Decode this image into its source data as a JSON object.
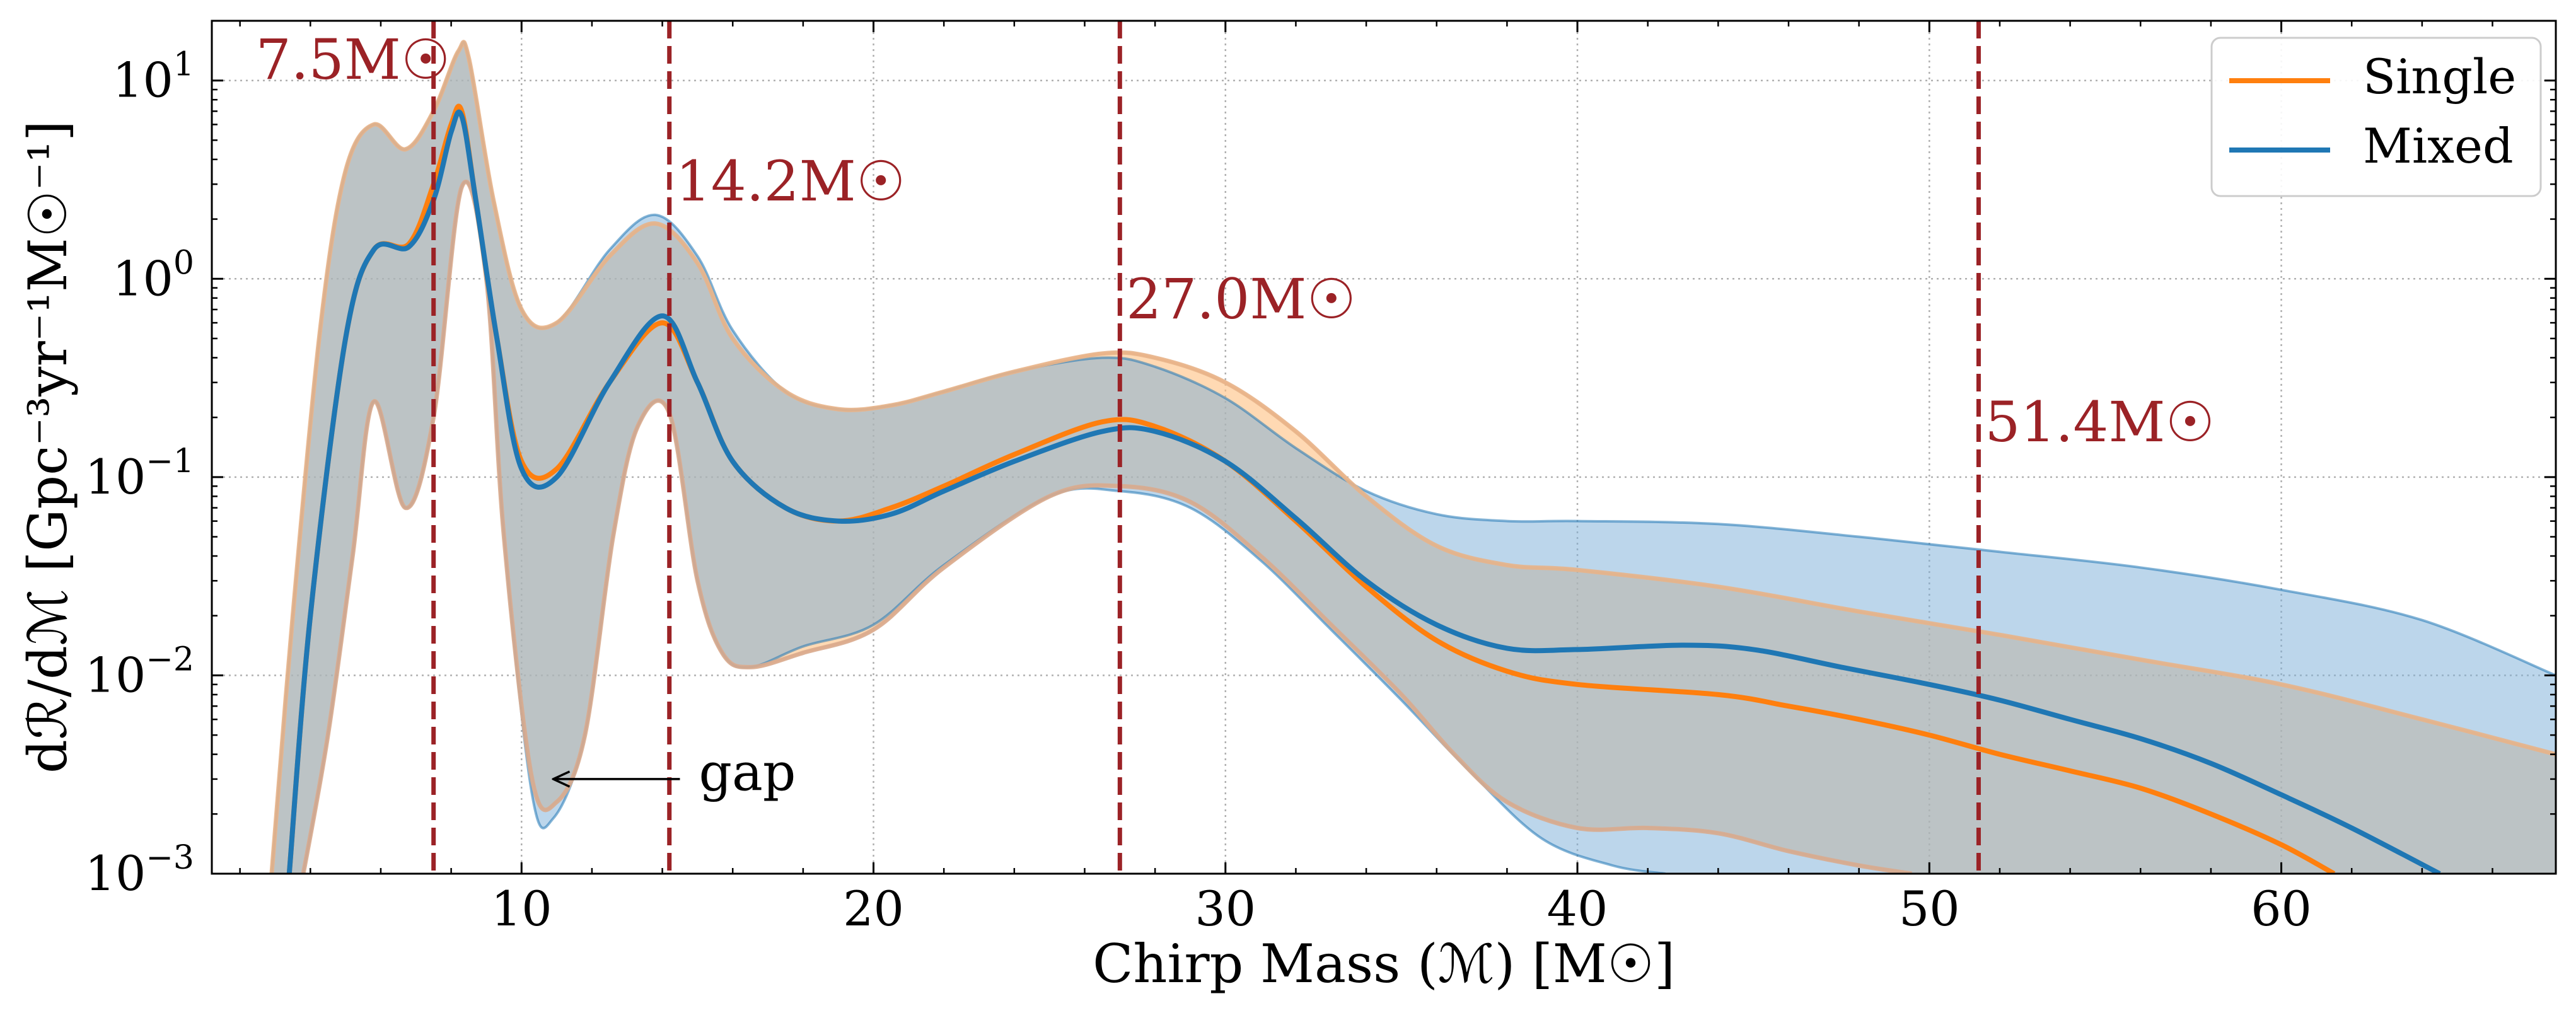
{
  "chart_data": {
    "type": "line",
    "title": "",
    "xlabel": "Chirp Mass (ℳ) [M☉]",
    "ylabel": "dℛ/dℳ [Gpc⁻³yr⁻¹M☉⁻¹]",
    "xlim": [
      1.2,
      67.8
    ],
    "ylim": [
      0.001,
      20
    ],
    "yscale": "log",
    "grid": true,
    "legend_position": "top-right",
    "x_ticks": [
      10,
      20,
      30,
      40,
      50,
      60
    ],
    "x_tick_labels": [
      "10",
      "20",
      "30",
      "40",
      "50",
      "60"
    ],
    "y_ticks": [
      0.001,
      0.01,
      0.1,
      1,
      10
    ],
    "y_tick_labels": [
      {
        "base": "10",
        "exp": "−3"
      },
      {
        "base": "10",
        "exp": "−2"
      },
      {
        "base": "10",
        "exp": "−1"
      },
      {
        "base": "10",
        "exp": "0"
      },
      {
        "base": "10",
        "exp": "1"
      }
    ],
    "vertical_lines": [
      {
        "x": 7.5,
        "label": "7.5M☉",
        "color": "#9b2226"
      },
      {
        "x": 14.2,
        "label": "14.2M☉",
        "color": "#9b2226"
      },
      {
        "x": 27.0,
        "label": "27.0M☉",
        "color": "#9b2226"
      },
      {
        "x": 51.4,
        "label": "51.4M☉",
        "color": "#9b2226"
      }
    ],
    "annotations": [
      {
        "text": "gap",
        "arrow_from": [
          14.5,
          0.003
        ],
        "arrow_to": [
          10.9,
          0.003
        ]
      }
    ],
    "series": [
      {
        "name": "Single",
        "color": "#ff7f0e",
        "x": [
          3.4,
          4.0,
          5.0,
          5.8,
          6.8,
          7.5,
          8.0,
          8.3,
          8.7,
          9.3,
          10.0,
          11.0,
          12.5,
          14.0,
          15.0,
          16.0,
          17.5,
          19.0,
          20.5,
          22.0,
          24.0,
          26.5,
          28.0,
          30.0,
          32.0,
          34.0,
          36.0,
          38.0,
          40.0,
          44.0,
          46.0,
          48.0,
          50.0,
          52.0,
          54.0,
          56.0,
          58.0,
          60.0,
          61.5
        ],
        "values": [
          0.001,
          0.02,
          0.5,
          1.4,
          1.5,
          3.0,
          6.0,
          7.0,
          2.5,
          0.5,
          0.12,
          0.11,
          0.3,
          0.6,
          0.3,
          0.12,
          0.07,
          0.06,
          0.07,
          0.09,
          0.13,
          0.19,
          0.18,
          0.12,
          0.06,
          0.028,
          0.015,
          0.0105,
          0.009,
          0.008,
          0.007,
          0.006,
          0.005,
          0.004,
          0.0033,
          0.0027,
          0.002,
          0.0014,
          0.001
        ],
        "band_lower": [
          [
            3.8,
            0.001
          ],
          [
            4.5,
            0.005
          ],
          [
            5.2,
            0.04
          ],
          [
            5.8,
            0.24
          ],
          [
            6.7,
            0.07
          ],
          [
            7.5,
            0.2
          ],
          [
            8.3,
            2.9
          ],
          [
            9.0,
            1.0
          ],
          [
            9.5,
            0.05
          ],
          [
            10.3,
            0.003
          ],
          [
            11.0,
            0.0023
          ],
          [
            11.8,
            0.005
          ],
          [
            12.6,
            0.05
          ],
          [
            13.3,
            0.18
          ],
          [
            14.2,
            0.21
          ],
          [
            15.0,
            0.03
          ],
          [
            15.7,
            0.013
          ],
          [
            16.5,
            0.011
          ],
          [
            18.0,
            0.013
          ],
          [
            20.0,
            0.017
          ],
          [
            22.0,
            0.035
          ],
          [
            25.0,
            0.08
          ],
          [
            27.0,
            0.09
          ],
          [
            29.0,
            0.075
          ],
          [
            31.0,
            0.04
          ],
          [
            33.0,
            0.018
          ],
          [
            35.0,
            0.008
          ],
          [
            36.5,
            0.004
          ],
          [
            38.0,
            0.0023
          ],
          [
            40.0,
            0.0017
          ],
          [
            42.0,
            0.0017
          ],
          [
            44.0,
            0.0016
          ],
          [
            46.0,
            0.0013
          ],
          [
            48.0,
            0.0011
          ],
          [
            49.5,
            0.001
          ]
        ],
        "band_upper": [
          [
            2.9,
            0.001
          ],
          [
            3.5,
            0.02
          ],
          [
            4.3,
            0.6
          ],
          [
            5.0,
            3.5
          ],
          [
            5.8,
            6.0
          ],
          [
            6.7,
            4.5
          ],
          [
            7.5,
            7.0
          ],
          [
            8.2,
            14.0
          ],
          [
            8.5,
            13.0
          ],
          [
            9.2,
            2.5
          ],
          [
            10.0,
            0.7
          ],
          [
            11.0,
            0.6
          ],
          [
            12.5,
            1.3
          ],
          [
            13.8,
            1.9
          ],
          [
            15.0,
            1.2
          ],
          [
            16.0,
            0.5
          ],
          [
            17.5,
            0.27
          ],
          [
            19.0,
            0.22
          ],
          [
            20.5,
            0.23
          ],
          [
            22.0,
            0.27
          ],
          [
            24.0,
            0.34
          ],
          [
            26.5,
            0.42
          ],
          [
            28.0,
            0.4
          ],
          [
            30.0,
            0.3
          ],
          [
            32.0,
            0.17
          ],
          [
            34.0,
            0.08
          ],
          [
            36.0,
            0.045
          ],
          [
            38.0,
            0.036
          ],
          [
            40.0,
            0.034
          ],
          [
            44.0,
            0.028
          ],
          [
            48.0,
            0.021
          ],
          [
            52.0,
            0.016
          ],
          [
            56.0,
            0.012
          ],
          [
            60.0,
            0.009
          ],
          [
            64.0,
            0.006
          ],
          [
            67.8,
            0.004
          ]
        ]
      },
      {
        "name": "Mixed",
        "color": "#1f77b4",
        "x": [
          3.4,
          4.0,
          5.0,
          5.8,
          6.8,
          7.5,
          8.0,
          8.3,
          8.7,
          9.3,
          10.0,
          11.0,
          12.5,
          14.0,
          15.0,
          16.0,
          17.5,
          19.0,
          20.5,
          22.0,
          24.0,
          26.5,
          28.0,
          30.0,
          32.0,
          34.0,
          36.0,
          38.0,
          40.0,
          43.0,
          45.0,
          47.5,
          50.0,
          52.0,
          54.0,
          56.0,
          58.0,
          60.0,
          62.0,
          64.5
        ],
        "values": [
          0.001,
          0.02,
          0.5,
          1.4,
          1.45,
          2.5,
          5.5,
          6.6,
          2.5,
          0.5,
          0.11,
          0.1,
          0.3,
          0.65,
          0.3,
          0.12,
          0.07,
          0.06,
          0.065,
          0.085,
          0.12,
          0.17,
          0.17,
          0.12,
          0.062,
          0.03,
          0.018,
          0.0137,
          0.0135,
          0.0142,
          0.0135,
          0.011,
          0.009,
          0.0075,
          0.006,
          0.0048,
          0.0036,
          0.0025,
          0.0017,
          0.001
        ],
        "band_lower": [
          [
            3.8,
            0.001
          ],
          [
            4.5,
            0.005
          ],
          [
            5.2,
            0.04
          ],
          [
            5.8,
            0.24
          ],
          [
            6.7,
            0.07
          ],
          [
            7.5,
            0.2
          ],
          [
            8.3,
            2.9
          ],
          [
            9.0,
            1.0
          ],
          [
            9.5,
            0.05
          ],
          [
            10.3,
            0.0025
          ],
          [
            10.9,
            0.0019
          ],
          [
            11.8,
            0.005
          ],
          [
            12.6,
            0.05
          ],
          [
            13.3,
            0.18
          ],
          [
            14.2,
            0.21
          ],
          [
            15.0,
            0.03
          ],
          [
            15.7,
            0.013
          ],
          [
            16.5,
            0.011
          ],
          [
            18.0,
            0.014
          ],
          [
            20.0,
            0.018
          ],
          [
            22.0,
            0.036
          ],
          [
            25.0,
            0.08
          ],
          [
            27.0,
            0.085
          ],
          [
            29.0,
            0.07
          ],
          [
            31.0,
            0.038
          ],
          [
            33.0,
            0.017
          ],
          [
            35.0,
            0.0075
          ],
          [
            37.0,
            0.0032
          ],
          [
            39.0,
            0.0015
          ],
          [
            41.0,
            0.0011
          ],
          [
            42.5,
            0.001
          ]
        ],
        "band_upper": [
          [
            2.9,
            0.001
          ],
          [
            3.5,
            0.02
          ],
          [
            4.3,
            0.6
          ],
          [
            5.0,
            3.5
          ],
          [
            5.8,
            6.0
          ],
          [
            6.7,
            4.5
          ],
          [
            7.5,
            7.0
          ],
          [
            8.2,
            14.0
          ],
          [
            8.5,
            13.0
          ],
          [
            9.2,
            2.5
          ],
          [
            10.0,
            0.7
          ],
          [
            11.0,
            0.6
          ],
          [
            12.5,
            1.4
          ],
          [
            13.8,
            2.1
          ],
          [
            15.0,
            1.3
          ],
          [
            16.0,
            0.55
          ],
          [
            17.5,
            0.27
          ],
          [
            19.0,
            0.22
          ],
          [
            20.5,
            0.23
          ],
          [
            22.0,
            0.27
          ],
          [
            24.0,
            0.34
          ],
          [
            26.5,
            0.4
          ],
          [
            28.0,
            0.36
          ],
          [
            30.0,
            0.25
          ],
          [
            32.0,
            0.14
          ],
          [
            34.0,
            0.085
          ],
          [
            36.0,
            0.065
          ],
          [
            38.0,
            0.06
          ],
          [
            40.0,
            0.06
          ],
          [
            44.0,
            0.058
          ],
          [
            48.0,
            0.05
          ],
          [
            52.0,
            0.042
          ],
          [
            56.0,
            0.035
          ],
          [
            60.0,
            0.027
          ],
          [
            64.0,
            0.019
          ],
          [
            67.8,
            0.01
          ]
        ]
      }
    ]
  }
}
